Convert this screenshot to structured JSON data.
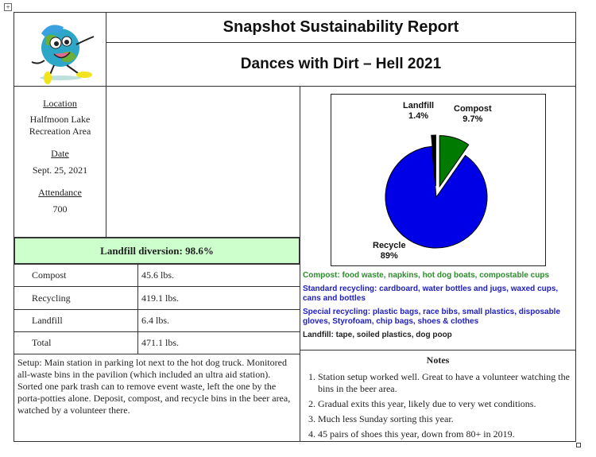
{
  "header": {
    "title": "Snapshot Sustainability Report",
    "subtitle": "Dances with Dirt – Hell 2021"
  },
  "logo": {
    "icon": "dancing-earth-mascot"
  },
  "info": {
    "location_label": "Location",
    "location_line1": "Halfmoon Lake",
    "location_line2": "Recreation Area",
    "date_label": "Date",
    "date": "Sept. 25, 2021",
    "attendance_label": "Attendance",
    "attendance": "700"
  },
  "diversion": {
    "label": "Landfill diversion:  98.6%",
    "bg": "#ccffcc"
  },
  "weights": [
    {
      "stream": "Compost",
      "value": "45.6 lbs."
    },
    {
      "stream": "Recycling",
      "value": "419.1 lbs."
    },
    {
      "stream": "Landfill",
      "value": "6.4 lbs."
    },
    {
      "stream": "Total",
      "value": "471.1 lbs."
    }
  ],
  "setup": "Setup: Main station in parking lot next to the hot dog truck. Monitored all-waste bins in the pavilion (which included an ultra aid station). Sorted one park trash can to remove event waste, left the one by the porta-potties alone. Deposit, compost, and recycle bins in the beer area, watched by a volunteer there.",
  "chart_data": {
    "type": "pie",
    "slices": [
      {
        "label": "Compost",
        "value": 9.7,
        "display": "9.7%",
        "color": "#007a00",
        "exploded": true
      },
      {
        "label": "Recycle",
        "value": 89,
        "display": "89%",
        "color": "#0000e6",
        "exploded": false
      },
      {
        "label": "Landfill",
        "value": 1.4,
        "display": "1.4%",
        "color": "#000000",
        "exploded": true
      }
    ]
  },
  "legend": [
    {
      "text": "Compost: food waste, napkins, hot dog boats, compostable cups",
      "color": "#2e8b2e"
    },
    {
      "text": "Standard recycling: cardboard, water bottles and jugs, waxed cups, cans and bottles",
      "color": "#2020c0"
    },
    {
      "text": "Special recycling: plastic bags, race bibs, small plastics, disposable gloves, Styrofoam, chip bags, shoes & clothes",
      "color": "#2020c0"
    },
    {
      "text": "Landfill: tape, soiled plastics, dog poop",
      "color": "#222222"
    }
  ],
  "notes": {
    "title": "Notes",
    "items": [
      "1.  Station setup worked well. Great to have a volunteer watching the bins in the beer area.",
      "2.  Gradual exits this year, likely due to very wet conditions.",
      "3.  Much less Sunday sorting this year.",
      "4. 45 pairs of shoes this year, down from 80+ in 2019."
    ]
  }
}
